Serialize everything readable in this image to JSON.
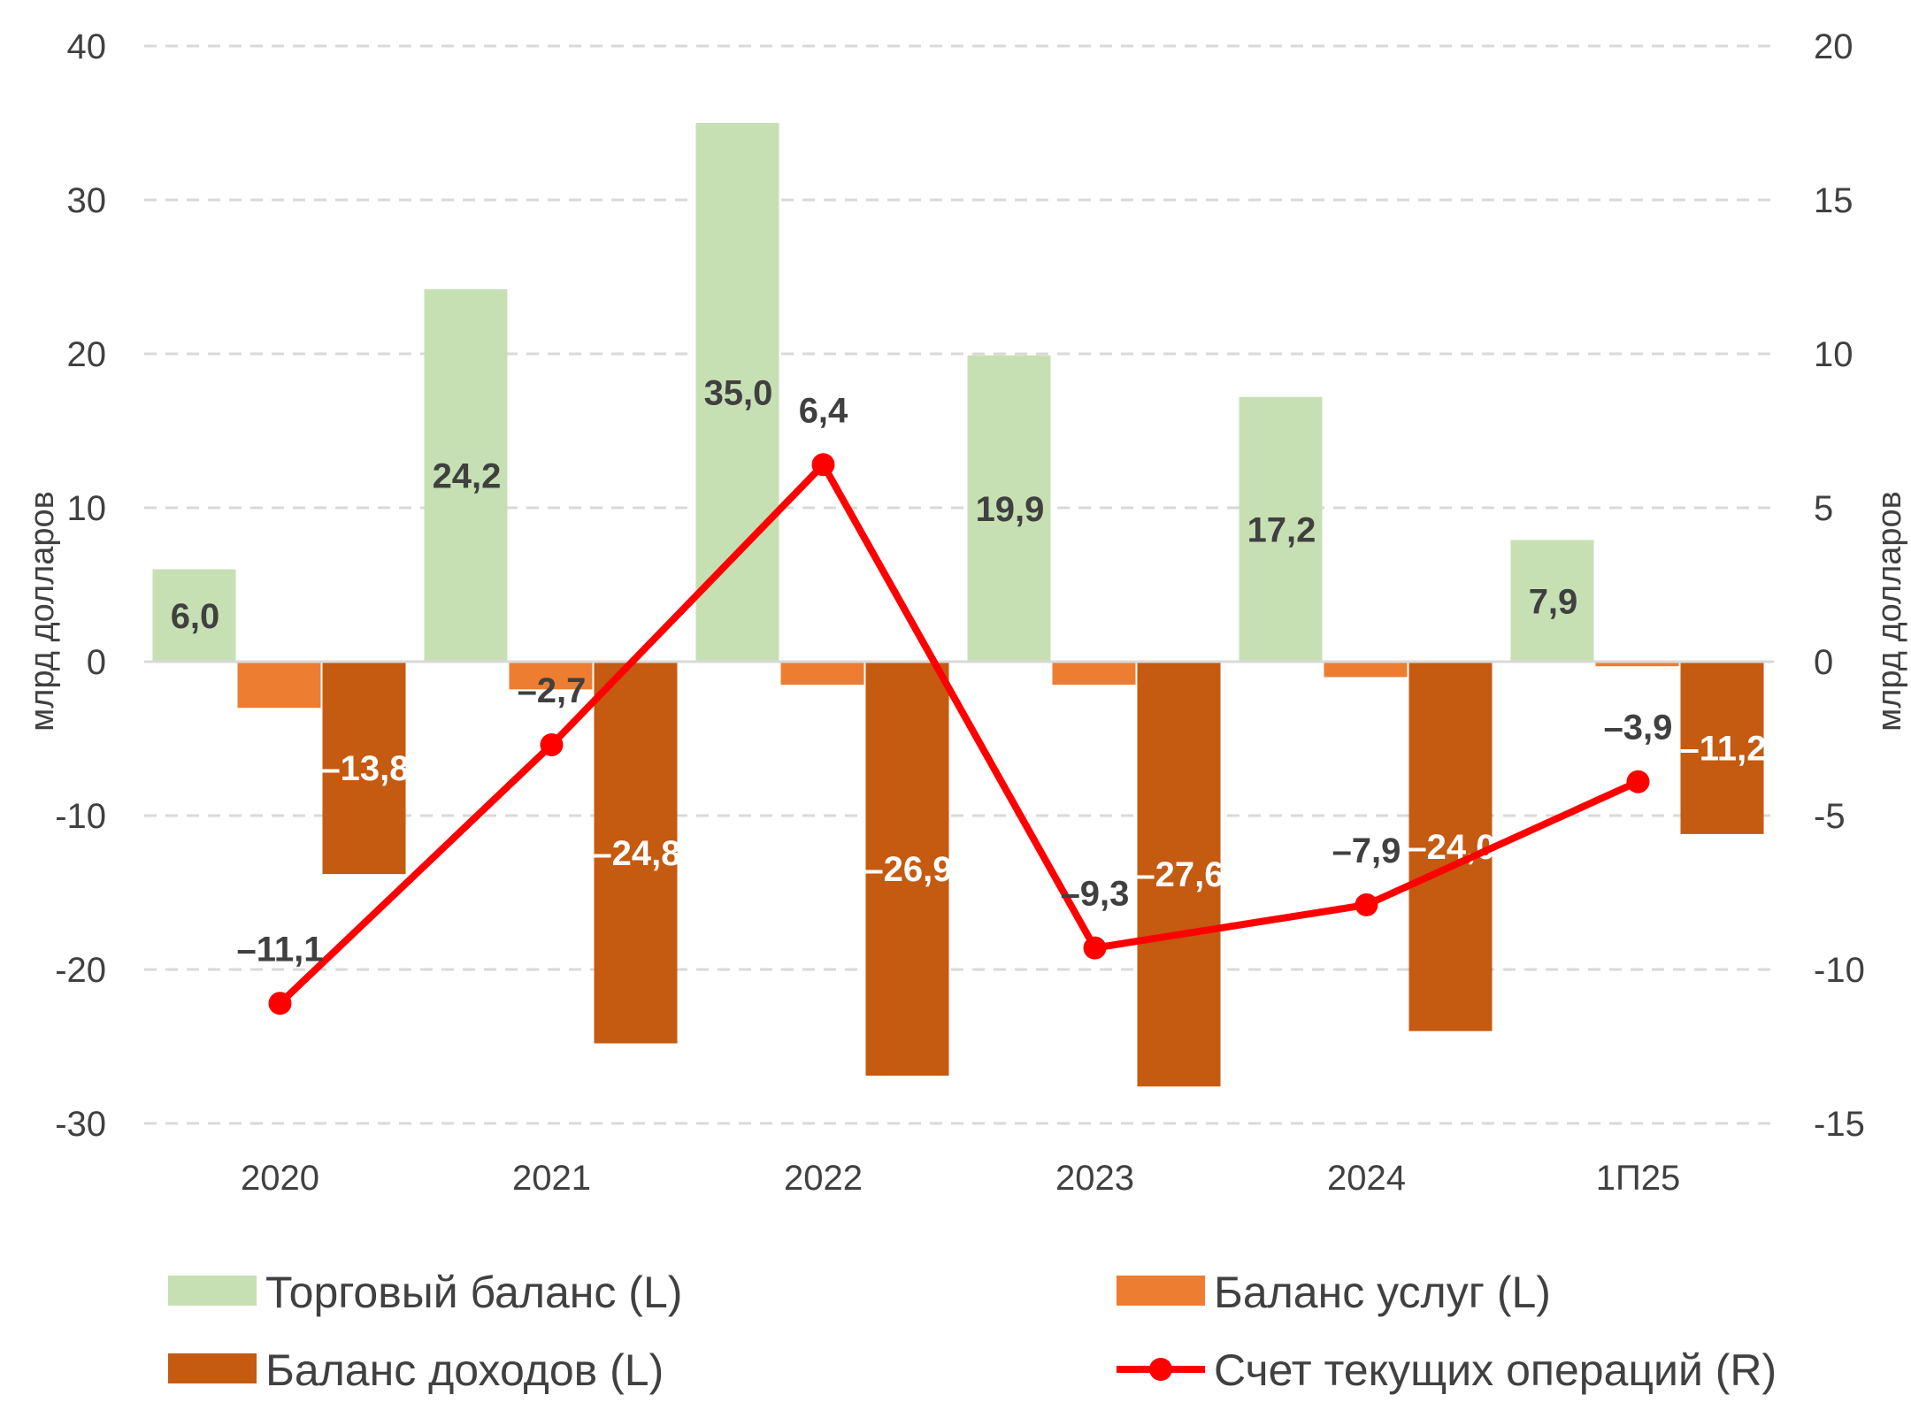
{
  "chart_data": {
    "type": "bar",
    "categories": [
      "2020",
      "2021",
      "2022",
      "2023",
      "2024",
      "1П25"
    ],
    "y_left": {
      "label": "млрд долларов",
      "min": -30,
      "max": 40,
      "ticks": [
        "-30",
        "-20",
        "-10",
        "0",
        "10",
        "20",
        "30",
        "40"
      ]
    },
    "y_right": {
      "label": "млрд долларов",
      "min": -15,
      "max": 20,
      "ticks": [
        "-15",
        "-10",
        "-5",
        "0",
        "5",
        "10",
        "15",
        "20"
      ]
    },
    "grid": true,
    "legend_position": "bottom",
    "series": [
      {
        "name": "Торговый баланс (L)",
        "type": "bar",
        "axis": "left",
        "color": "#c6e0b4",
        "values": [
          6.0,
          24.2,
          35.0,
          19.9,
          17.2,
          7.9
        ],
        "labels": [
          "6,0",
          "24,2",
          "35,0",
          "19,9",
          "17,2",
          "7,9"
        ],
        "label_color": "#404040"
      },
      {
        "name": "Баланс услуг (L)",
        "type": "bar",
        "axis": "left",
        "color": "#ed7d31",
        "values": [
          -3.0,
          -1.8,
          -1.5,
          -1.5,
          -1.0,
          -0.3
        ],
        "labels": [],
        "label_color": "#ffffff"
      },
      {
        "name": "Баланс доходов (L)",
        "type": "bar",
        "axis": "left",
        "color": "#c55a11",
        "values": [
          -13.8,
          -24.8,
          -26.9,
          -27.6,
          -24.0,
          -11.2
        ],
        "labels": [
          "–13,8",
          "–24,8",
          "–26,9",
          "–27,6",
          "–24,0",
          "–11,2"
        ],
        "label_color": "#ffffff"
      },
      {
        "name": "Счет текущих операций (R)",
        "type": "line",
        "axis": "right",
        "color": "#ff0000",
        "values": [
          -11.1,
          -2.7,
          6.4,
          -9.3,
          -7.9,
          -3.9
        ],
        "labels": [
          "–11,1",
          "–2,7",
          "6,4",
          "–9,3",
          "–7,9",
          "–3,9"
        ],
        "label_color": "#404040"
      }
    ]
  }
}
